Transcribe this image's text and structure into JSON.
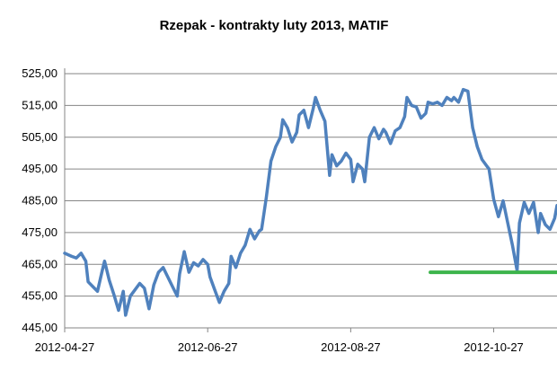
{
  "chart_data": {
    "type": "line",
    "title": "Rzepak - kontrakty luty 2013, MATIF",
    "xlabel": "",
    "ylabel": "",
    "ylim": [
      445,
      525
    ],
    "yticks": [
      "525,00",
      "515,00",
      "505,00",
      "495,00",
      "485,00",
      "475,00",
      "465,00",
      "455,00",
      "445,00"
    ],
    "xticks": [
      "2012-04-27",
      "2012-06-27",
      "2012-08-27",
      "2012-10-27"
    ],
    "xrange": [
      "2012-04-27",
      "2012-11-23"
    ],
    "grid": true,
    "legend": "none",
    "series": [
      {
        "color": "#4f81bd",
        "points": [
          [
            "2012-04-27",
            468.5
          ],
          [
            "2012-04-30",
            467.5
          ],
          [
            "2012-05-02",
            467.0
          ],
          [
            "2012-05-04",
            468.5
          ],
          [
            "2012-05-06",
            466.0
          ],
          [
            "2012-05-07",
            459.5
          ],
          [
            "2012-05-09",
            458.0
          ],
          [
            "2012-05-11",
            456.5
          ],
          [
            "2012-05-13",
            463.0
          ],
          [
            "2012-05-14",
            466.0
          ],
          [
            "2012-05-16",
            460.0
          ],
          [
            "2012-05-18",
            455.5
          ],
          [
            "2012-05-20",
            450.5
          ],
          [
            "2012-05-22",
            456.5
          ],
          [
            "2012-05-23",
            449.0
          ],
          [
            "2012-05-25",
            455.0
          ],
          [
            "2012-05-27",
            457.0
          ],
          [
            "2012-05-29",
            459.0
          ],
          [
            "2012-05-31",
            457.5
          ],
          [
            "2012-06-02",
            451.0
          ],
          [
            "2012-06-04",
            458.5
          ],
          [
            "2012-06-06",
            462.5
          ],
          [
            "2012-06-08",
            464.0
          ],
          [
            "2012-06-10",
            461.0
          ],
          [
            "2012-06-12",
            458.0
          ],
          [
            "2012-06-14",
            455.0
          ],
          [
            "2012-06-15",
            462.0
          ],
          [
            "2012-06-17",
            469.0
          ],
          [
            "2012-06-19",
            462.5
          ],
          [
            "2012-06-21",
            465.5
          ],
          [
            "2012-06-23",
            464.5
          ],
          [
            "2012-06-25",
            466.5
          ],
          [
            "2012-06-27",
            465.0
          ],
          [
            "2012-06-28",
            461.0
          ],
          [
            "2012-06-30",
            457.0
          ],
          [
            "2012-07-02",
            453.0
          ],
          [
            "2012-07-04",
            456.5
          ],
          [
            "2012-07-06",
            459.0
          ],
          [
            "2012-07-07",
            467.5
          ],
          [
            "2012-07-09",
            464.0
          ],
          [
            "2012-07-11",
            468.5
          ],
          [
            "2012-07-13",
            471.0
          ],
          [
            "2012-07-15",
            476.0
          ],
          [
            "2012-07-17",
            473.0
          ],
          [
            "2012-07-19",
            475.5
          ],
          [
            "2012-07-20",
            476.0
          ],
          [
            "2012-07-22",
            486.0
          ],
          [
            "2012-07-24",
            497.5
          ],
          [
            "2012-07-26",
            502.0
          ],
          [
            "2012-07-28",
            505.0
          ],
          [
            "2012-07-29",
            510.5
          ],
          [
            "2012-07-31",
            508.0
          ],
          [
            "2012-08-02",
            503.5
          ],
          [
            "2012-08-04",
            506.5
          ],
          [
            "2012-08-05",
            512.0
          ],
          [
            "2012-08-07",
            513.5
          ],
          [
            "2012-08-09",
            508.0
          ],
          [
            "2012-08-11",
            514.0
          ],
          [
            "2012-08-12",
            517.5
          ],
          [
            "2012-08-14",
            513.5
          ],
          [
            "2012-08-16",
            510.0
          ],
          [
            "2012-08-18",
            493.0
          ],
          [
            "2012-08-19",
            499.5
          ],
          [
            "2012-08-21",
            496.0
          ],
          [
            "2012-08-23",
            497.5
          ],
          [
            "2012-08-25",
            500.0
          ],
          [
            "2012-08-27",
            498.0
          ],
          [
            "2012-08-28",
            491.0
          ],
          [
            "2012-08-30",
            496.5
          ],
          [
            "2012-09-01",
            495.0
          ],
          [
            "2012-09-02",
            491.0
          ],
          [
            "2012-09-04",
            505.0
          ],
          [
            "2012-09-06",
            508.0
          ],
          [
            "2012-09-08",
            504.5
          ],
          [
            "2012-09-10",
            507.5
          ],
          [
            "2012-09-11",
            506.5
          ],
          [
            "2012-09-13",
            503.0
          ],
          [
            "2012-09-15",
            507.0
          ],
          [
            "2012-09-17",
            508.0
          ],
          [
            "2012-09-19",
            511.5
          ],
          [
            "2012-09-20",
            517.5
          ],
          [
            "2012-09-22",
            515.0
          ],
          [
            "2012-09-24",
            514.5
          ],
          [
            "2012-09-26",
            511.0
          ],
          [
            "2012-09-28",
            512.5
          ],
          [
            "2012-09-29",
            516.0
          ],
          [
            "2012-10-01",
            515.5
          ],
          [
            "2012-10-03",
            516.0
          ],
          [
            "2012-10-05",
            515.0
          ],
          [
            "2012-10-07",
            517.5
          ],
          [
            "2012-10-09",
            516.5
          ],
          [
            "2012-10-10",
            517.5
          ],
          [
            "2012-10-12",
            516.0
          ],
          [
            "2012-10-14",
            520.0
          ],
          [
            "2012-10-16",
            519.5
          ],
          [
            "2012-10-18",
            508.0
          ],
          [
            "2012-10-20",
            502.0
          ],
          [
            "2012-10-22",
            498.0
          ],
          [
            "2012-10-24",
            496.0
          ],
          [
            "2012-10-25",
            495.0
          ],
          [
            "2012-10-27",
            485.5
          ],
          [
            "2012-10-29",
            480.0
          ],
          [
            "2012-10-31",
            485.0
          ],
          [
            "2012-11-02",
            478.0
          ],
          [
            "2012-11-04",
            471.0
          ],
          [
            "2012-11-06",
            463.0
          ],
          [
            "2012-11-07",
            478.0
          ],
          [
            "2012-11-09",
            484.5
          ],
          [
            "2012-11-11",
            481.0
          ],
          [
            "2012-11-13",
            484.5
          ],
          [
            "2012-11-15",
            475.0
          ],
          [
            "2012-11-16",
            481.0
          ],
          [
            "2012-11-18",
            477.5
          ],
          [
            "2012-11-20",
            476.0
          ],
          [
            "2012-11-22",
            479.5
          ],
          [
            "2012-11-23",
            483.5
          ]
        ]
      },
      {
        "color": "#3cb44b",
        "points": [
          [
            "2012-09-30",
            462.5
          ],
          [
            "2012-11-23",
            462.5
          ]
        ]
      }
    ]
  }
}
